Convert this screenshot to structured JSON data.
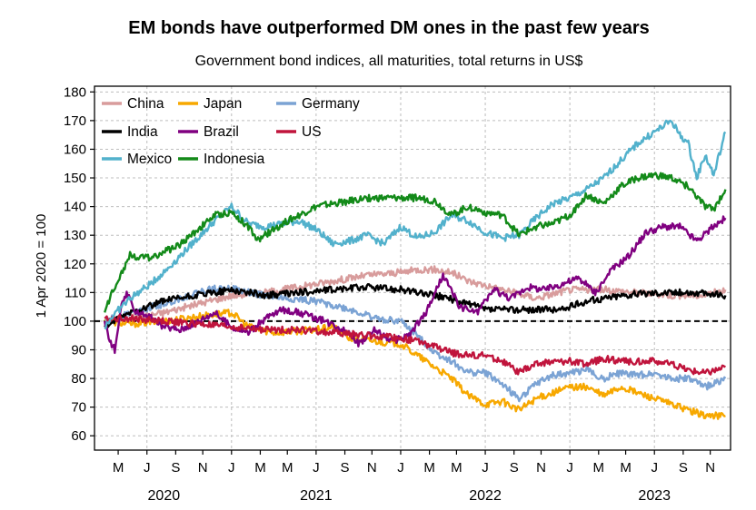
{
  "chart_data": {
    "type": "line",
    "title": "EM bonds have outperformed DM ones in the past few years",
    "subtitle": "Government bond indices, all maturities, total returns in US$",
    "ylabel": "1 Apr 2020 = 100",
    "xlabel": "",
    "ylim": [
      55,
      182
    ],
    "yticks": [
      60,
      70,
      80,
      90,
      100,
      110,
      120,
      130,
      140,
      150,
      160,
      170,
      180
    ],
    "x_range": [
      2020.19,
      2023.95
    ],
    "month_ticks": [
      {
        "label": "M",
        "x": 2020.33
      },
      {
        "label": "J",
        "x": 2020.5
      },
      {
        "label": "S",
        "x": 2020.67
      },
      {
        "label": "N",
        "x": 2020.83
      },
      {
        "label": "J",
        "x": 2021.0
      },
      {
        "label": "M",
        "x": 2021.17
      },
      {
        "label": "M",
        "x": 2021.33
      },
      {
        "label": "J",
        "x": 2021.5
      },
      {
        "label": "S",
        "x": 2021.67
      },
      {
        "label": "N",
        "x": 2021.83
      },
      {
        "label": "J",
        "x": 2022.0
      },
      {
        "label": "M",
        "x": 2022.17
      },
      {
        "label": "M",
        "x": 2022.33
      },
      {
        "label": "J",
        "x": 2022.5
      },
      {
        "label": "S",
        "x": 2022.67
      },
      {
        "label": "N",
        "x": 2022.83
      },
      {
        "label": "J",
        "x": 2023.0
      },
      {
        "label": "M",
        "x": 2023.17
      },
      {
        "label": "M",
        "x": 2023.33
      },
      {
        "label": "J",
        "x": 2023.5
      },
      {
        "label": "S",
        "x": 2023.67
      },
      {
        "label": "N",
        "x": 2023.83
      }
    ],
    "years": [
      {
        "label": "2020",
        "x": 2020.6
      },
      {
        "label": "2021",
        "x": 2021.5
      },
      {
        "label": "2022",
        "x": 2022.5
      },
      {
        "label": "2023",
        "x": 2023.5
      }
    ],
    "reference_line": 100,
    "grid": true,
    "legend_position": "top-left",
    "series": [
      {
        "name": "China",
        "color": "#d89c9c",
        "x": [
          2020.25,
          2020.4,
          2020.6,
          2020.8,
          2021.0,
          2021.2,
          2021.4,
          2021.6,
          2021.8,
          2022.0,
          2022.1,
          2022.2,
          2022.3,
          2022.4,
          2022.6,
          2022.8,
          2023.0,
          2023.2,
          2023.4,
          2023.6,
          2023.8,
          2023.92
        ],
        "y": [
          100,
          101,
          103,
          106,
          109,
          110,
          112,
          114,
          116,
          117,
          118,
          118,
          117,
          114,
          111,
          108,
          111,
          111,
          110,
          109,
          109,
          111
        ]
      },
      {
        "name": "Japan",
        "color": "#f7a800",
        "x": [
          2020.25,
          2020.4,
          2020.6,
          2020.85,
          2021.0,
          2021.1,
          2021.25,
          2021.5,
          2021.6,
          2021.7,
          2021.85,
          2022.0,
          2022.1,
          2022.2,
          2022.3,
          2022.4,
          2022.5,
          2022.6,
          2022.7,
          2022.8,
          2022.9,
          2023.0,
          2023.1,
          2023.2,
          2023.3,
          2023.4,
          2023.5,
          2023.6,
          2023.7,
          2023.8,
          2023.92
        ],
        "y": [
          100,
          99,
          100,
          102,
          103,
          98,
          96,
          97,
          98,
          94,
          93,
          92,
          88,
          84,
          80,
          74,
          71,
          72,
          69,
          73,
          75,
          77,
          77,
          74,
          77,
          75,
          73,
          71,
          69,
          67,
          67
        ]
      },
      {
        "name": "Germany",
        "color": "#7ba3d4",
        "x": [
          2020.25,
          2020.4,
          2020.6,
          2020.8,
          2020.95,
          2021.1,
          2021.3,
          2021.5,
          2021.7,
          2021.85,
          2022.0,
          2022.1,
          2022.2,
          2022.3,
          2022.4,
          2022.5,
          2022.6,
          2022.7,
          2022.8,
          2022.9,
          2023.0,
          2023.1,
          2023.2,
          2023.3,
          2023.4,
          2023.5,
          2023.6,
          2023.7,
          2023.8,
          2023.92
        ],
        "y": [
          100,
          103,
          106,
          110,
          112,
          110,
          108,
          107,
          104,
          101,
          100,
          95,
          89,
          86,
          82,
          82,
          78,
          73,
          78,
          81,
          82,
          83,
          80,
          82,
          81,
          82,
          80,
          80,
          77,
          80
        ]
      },
      {
        "name": "India",
        "color": "#000000",
        "x": [
          2020.25,
          2020.4,
          2020.6,
          2020.8,
          2021.0,
          2021.2,
          2021.4,
          2021.6,
          2021.8,
          2022.0,
          2022.2,
          2022.35,
          2022.5,
          2022.65,
          2022.8,
          2022.95,
          2023.1,
          2023.3,
          2023.5,
          2023.7,
          2023.92
        ],
        "y": [
          98,
          103,
          107,
          109,
          111,
          109,
          110,
          111,
          112,
          111,
          109,
          107,
          104,
          104,
          104,
          104,
          107,
          109,
          110,
          110,
          109
        ]
      },
      {
        "name": "Brazil",
        "color": "#800080",
        "x": [
          2020.25,
          2020.28,
          2020.31,
          2020.35,
          2020.38,
          2020.42,
          2020.5,
          2020.6,
          2020.7,
          2020.8,
          2020.9,
          2021.0,
          2021.1,
          2021.2,
          2021.3,
          2021.4,
          2021.5,
          2021.6,
          2021.7,
          2021.75,
          2021.85,
          2021.95,
          2022.05,
          2022.15,
          2022.25,
          2022.35,
          2022.45,
          2022.55,
          2022.65,
          2022.75,
          2022.85,
          2022.95,
          2023.05,
          2023.15,
          2023.25,
          2023.35,
          2023.45,
          2023.55,
          2023.65,
          2023.75,
          2023.85,
          2023.92
        ],
        "y": [
          100,
          93,
          90,
          105,
          110,
          104,
          102,
          98,
          97,
          100,
          103,
          98,
          96,
          101,
          104,
          103,
          101,
          99,
          96,
          92,
          97,
          93,
          95,
          103,
          116,
          105,
          103,
          111,
          108,
          112,
          111,
          113,
          115,
          110,
          118,
          123,
          131,
          133,
          133,
          128,
          133,
          136
        ]
      },
      {
        "name": "US",
        "color": "#c0143c",
        "x": [
          2020.25,
          2020.4,
          2020.6,
          2020.8,
          2021.0,
          2021.2,
          2021.4,
          2021.6,
          2021.8,
          2022.0,
          2022.1,
          2022.2,
          2022.3,
          2022.4,
          2022.5,
          2022.6,
          2022.7,
          2022.8,
          2022.9,
          2023.0,
          2023.1,
          2023.2,
          2023.3,
          2023.4,
          2023.5,
          2023.6,
          2023.7,
          2023.8,
          2023.92
        ],
        "y": [
          101,
          101,
          100,
          99,
          98,
          97,
          97,
          96,
          95,
          94,
          93,
          91,
          89,
          88,
          88,
          86,
          82,
          85,
          86,
          86,
          85,
          87,
          86,
          86,
          86,
          85,
          83,
          82,
          84
        ]
      },
      {
        "name": "Mexico",
        "color": "#52b1cc",
        "x": [
          2020.25,
          2020.3,
          2020.4,
          2020.5,
          2020.6,
          2020.7,
          2020.8,
          2020.9,
          2021.0,
          2021.1,
          2021.2,
          2021.3,
          2021.4,
          2021.5,
          2021.6,
          2021.7,
          2021.8,
          2021.9,
          2022.0,
          2022.1,
          2022.2,
          2022.3,
          2022.4,
          2022.5,
          2022.6,
          2022.7,
          2022.8,
          2022.9,
          2023.0,
          2023.1,
          2023.2,
          2023.3,
          2023.4,
          2023.5,
          2023.6,
          2023.65,
          2023.7,
          2023.75,
          2023.8,
          2023.85,
          2023.92
        ],
        "y": [
          98,
          102,
          108,
          112,
          117,
          123,
          129,
          135,
          140,
          134,
          133,
          134,
          135,
          132,
          127,
          128,
          130,
          127,
          133,
          129,
          131,
          137,
          135,
          131,
          129,
          130,
          136,
          141,
          143,
          146,
          150,
          156,
          162,
          166,
          170,
          165,
          162,
          150,
          158,
          151,
          166
        ]
      },
      {
        "name": "Indonesia",
        "color": "#138a19",
        "x": [
          2020.25,
          2020.3,
          2020.35,
          2020.4,
          2020.5,
          2020.6,
          2020.7,
          2020.8,
          2020.9,
          2021.0,
          2021.1,
          2021.15,
          2021.2,
          2021.3,
          2021.4,
          2021.5,
          2021.6,
          2021.7,
          2021.8,
          2021.9,
          2022.0,
          2022.1,
          2022.2,
          2022.3,
          2022.4,
          2022.5,
          2022.6,
          2022.7,
          2022.8,
          2022.9,
          2023.0,
          2023.1,
          2023.2,
          2023.3,
          2023.4,
          2023.5,
          2023.6,
          2023.7,
          2023.8,
          2023.85,
          2023.92
        ],
        "y": [
          103,
          111,
          117,
          123,
          122,
          124,
          127,
          132,
          137,
          138,
          133,
          128,
          130,
          134,
          137,
          140,
          141,
          142,
          143,
          143,
          143,
          143,
          142,
          137,
          140,
          138,
          137,
          130,
          133,
          134,
          137,
          144,
          141,
          147,
          150,
          151,
          150,
          147,
          140,
          139,
          146
        ]
      }
    ]
  }
}
